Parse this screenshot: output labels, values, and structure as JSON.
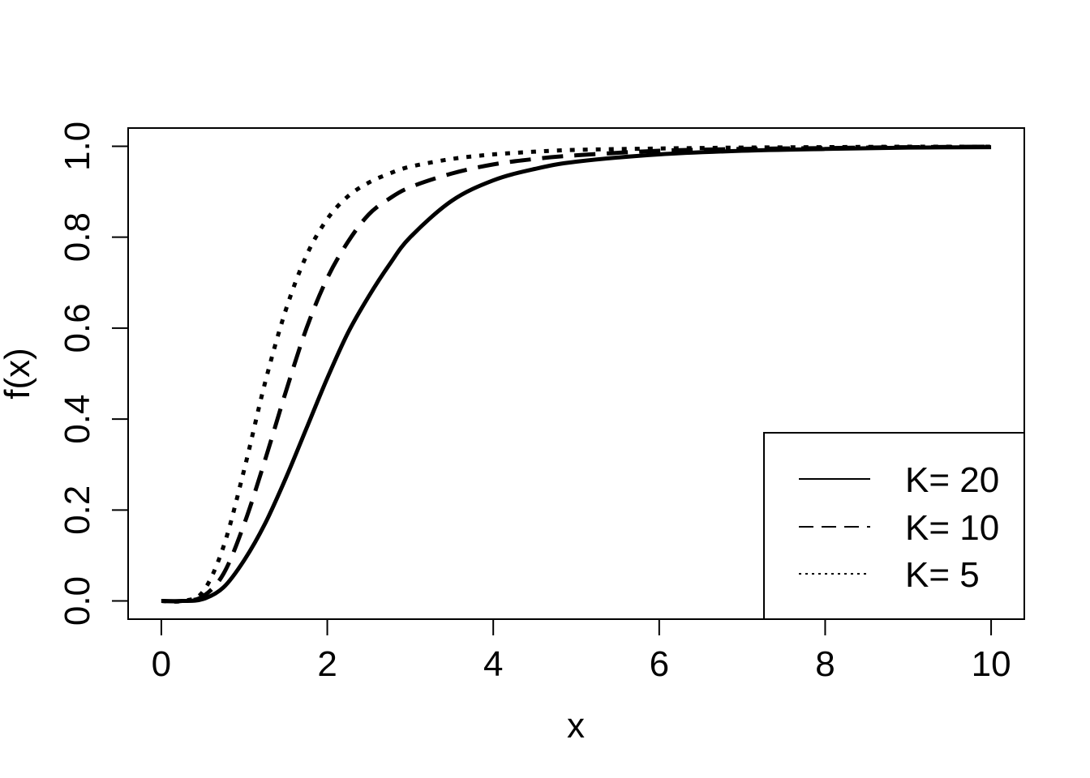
{
  "chart_data": {
    "type": "line",
    "title": "",
    "xlabel": "x",
    "ylabel": "f(x)",
    "xlim": [
      -0.4,
      10.4
    ],
    "ylim": [
      -0.04,
      1.04
    ],
    "x_ticks": [
      0,
      2,
      4,
      6,
      8,
      10
    ],
    "x_tick_labels": [
      "0",
      "2",
      "4",
      "6",
      "8",
      "10"
    ],
    "y_ticks": [
      0,
      0.2,
      0.4,
      0.6,
      0.8,
      1.0
    ],
    "y_tick_labels": [
      "0.0",
      "0.2",
      "0.4",
      "0.6",
      "0.8",
      "1.0"
    ],
    "grid": false,
    "legend_position": "bottom-right",
    "line_color": "#000000",
    "x": [
      0,
      0.25,
      0.5,
      0.75,
      1,
      1.25,
      1.5,
      1.75,
      2,
      2.25,
      2.5,
      2.75,
      3,
      3.5,
      4,
      4.5,
      5,
      6,
      7,
      8,
      9,
      10
    ],
    "series": [
      {
        "name": "K= 20",
        "style": "solid",
        "values": [
          0,
          0.0,
          0.004,
          0.03,
          0.09,
          0.17,
          0.27,
          0.38,
          0.49,
          0.59,
          0.67,
          0.74,
          0.8,
          0.88,
          0.925,
          0.95,
          0.966,
          0.982,
          0.99,
          0.994,
          0.997,
          0.998
        ]
      },
      {
        "name": "K= 10",
        "style": "dashed",
        "values": [
          0,
          0.0,
          0.01,
          0.06,
          0.17,
          0.31,
          0.46,
          0.6,
          0.71,
          0.79,
          0.85,
          0.885,
          0.91,
          0.94,
          0.96,
          0.972,
          0.98,
          0.99,
          0.994,
          0.996,
          0.998,
          0.999
        ]
      },
      {
        "name": "K= 5",
        "style": "dotted",
        "values": [
          0,
          0.0,
          0.02,
          0.12,
          0.29,
          0.48,
          0.64,
          0.76,
          0.84,
          0.89,
          0.92,
          0.94,
          0.955,
          0.972,
          0.982,
          0.988,
          0.992,
          0.995,
          0.997,
          0.998,
          0.999,
          0.999
        ]
      }
    ]
  }
}
